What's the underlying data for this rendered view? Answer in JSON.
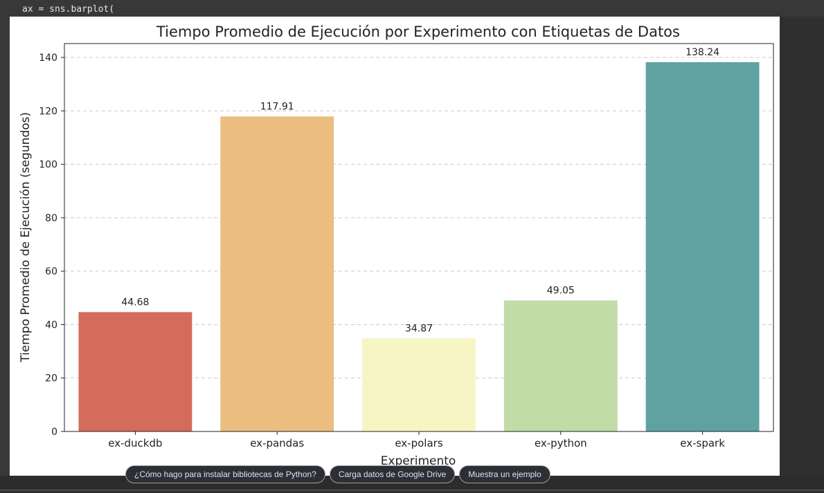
{
  "code": {
    "line": "ax = sns.barplot("
  },
  "chart_data": {
    "type": "bar",
    "title": "Tiempo Promedio de Ejecución por Experimento con Etiquetas de Datos",
    "xlabel": "Experimento",
    "ylabel": "Tiempo Promedio de Ejecución (segundos)",
    "categories": [
      "ex-duckdb",
      "ex-pandas",
      "ex-polars",
      "ex-python",
      "ex-spark"
    ],
    "values": [
      44.68,
      117.91,
      34.87,
      49.05,
      138.24
    ],
    "data_labels": [
      "44.68",
      "117.91",
      "34.87",
      "49.05",
      "138.24"
    ],
    "colors": [
      "#d56b5b",
      "#ebbd7f",
      "#f7f5c4",
      "#c1dca7",
      "#5ea3a1"
    ],
    "yticks": [
      0,
      20,
      40,
      60,
      80,
      100,
      120,
      140
    ],
    "ylim": [
      0,
      145.2
    ],
    "grid": "y-dashed"
  },
  "suggestions": {
    "chips": [
      "¿Cómo hago para instalar bibliotecas de Python?",
      "Carga datos de Google Drive",
      "Muestra un ejemplo"
    ]
  }
}
